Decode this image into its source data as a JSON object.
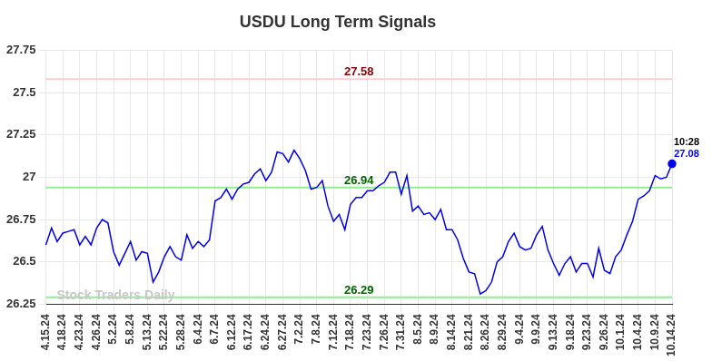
{
  "chart_data": {
    "type": "line",
    "title": "USDU Long Term Signals",
    "watermark": "Stock Traders Daily",
    "color": "#0000ee",
    "grid": true,
    "ylim": [
      26.25,
      27.75
    ],
    "yticks": [
      26.25,
      26.5,
      26.75,
      27,
      27.25,
      27.5,
      27.75
    ],
    "categories": [
      "4.15.24",
      null,
      null,
      "4.18.24",
      null,
      null,
      "4.23.24",
      null,
      null,
      "4.26.24",
      null,
      null,
      "5.2.24",
      null,
      null,
      "5.8.24",
      null,
      null,
      "5.13.24",
      null,
      null,
      "5.22.24",
      null,
      null,
      "5.28.24",
      null,
      null,
      "6.4.24",
      null,
      null,
      "6.7.24",
      null,
      null,
      "6.12.24",
      null,
      null,
      "6.17.24",
      null,
      null,
      "6.24.24",
      null,
      null,
      "6.27.24",
      null,
      null,
      "7.2.24",
      null,
      null,
      "7.8.24",
      null,
      null,
      "7.12.24",
      null,
      null,
      "7.18.24",
      null,
      null,
      "7.23.24",
      null,
      null,
      "7.26.24",
      null,
      null,
      "7.31.24",
      null,
      null,
      "8.5.24",
      null,
      null,
      "8.9.24",
      null,
      null,
      "8.14.24",
      null,
      null,
      "8.21.24",
      null,
      null,
      "8.26.24",
      null,
      null,
      "8.29.24",
      null,
      null,
      "9.4.24",
      null,
      null,
      "9.9.24",
      null,
      null,
      "9.13.24",
      null,
      null,
      "9.18.24",
      null,
      null,
      "9.23.24",
      null,
      null,
      "9.26.24",
      null,
      null,
      "10.1.24",
      null,
      null,
      "10.4.24",
      null,
      null,
      "10.9.24",
      null,
      null,
      "10.14.24"
    ],
    "values": [
      26.6,
      26.7,
      26.62,
      26.67,
      26.68,
      26.69,
      26.6,
      26.65,
      26.6,
      26.7,
      26.75,
      26.73,
      26.56,
      26.48,
      26.55,
      26.62,
      26.51,
      26.56,
      26.55,
      26.38,
      26.44,
      26.53,
      26.59,
      26.53,
      26.51,
      26.66,
      26.58,
      26.62,
      26.59,
      26.63,
      26.86,
      26.88,
      26.93,
      26.87,
      26.93,
      26.96,
      26.97,
      27.02,
      27.05,
      26.98,
      27.03,
      27.15,
      27.14,
      27.09,
      27.16,
      27.11,
      27.04,
      26.93,
      26.94,
      26.98,
      26.83,
      26.74,
      26.78,
      26.69,
      26.84,
      26.88,
      26.88,
      26.92,
      26.92,
      26.95,
      26.97,
      27.03,
      27.03,
      26.9,
      27.01,
      26.8,
      26.83,
      26.78,
      26.79,
      26.75,
      26.81,
      26.69,
      26.69,
      26.63,
      26.52,
      26.44,
      26.43,
      26.31,
      26.33,
      26.38,
      26.5,
      26.53,
      26.62,
      26.67,
      26.59,
      26.57,
      26.58,
      26.66,
      26.71,
      26.57,
      26.49,
      26.42,
      26.49,
      26.53,
      26.44,
      26.49,
      26.49,
      26.41,
      26.58,
      26.45,
      26.43,
      26.53,
      26.57,
      26.66,
      26.74,
      26.87,
      26.89,
      26.92,
      27.01,
      26.99,
      27.0,
      27.08
    ],
    "reference_lines": [
      {
        "value": 27.58,
        "color": "#ffcccc",
        "text_color": "#8b0000"
      },
      {
        "value": 26.94,
        "color": "#90ee90",
        "text_color": "#006400"
      },
      {
        "value": 26.29,
        "color": "#90ee90",
        "text_color": "#006400"
      }
    ],
    "last_point_time": "10:28"
  }
}
